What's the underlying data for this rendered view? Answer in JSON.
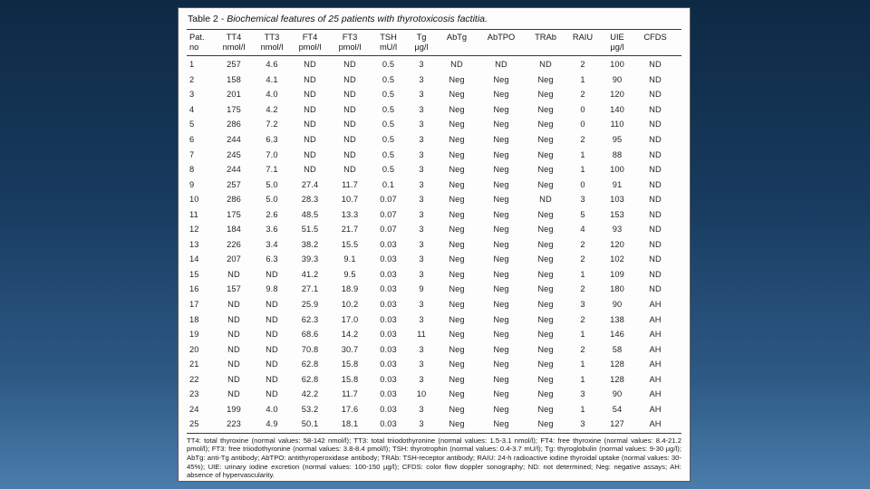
{
  "table": {
    "title_prefix": "Table 2",
    "title_rest": " - Biochemical features of 25 patients with thyrotoxicosis factitia.",
    "columns": [
      {
        "label": "Pat.",
        "unit": "no"
      },
      {
        "label": "TT4",
        "unit": "nmol/l"
      },
      {
        "label": "TT3",
        "unit": "nmol/l"
      },
      {
        "label": "FT4",
        "unit": "pmol/l"
      },
      {
        "label": "FT3",
        "unit": "pmol/l"
      },
      {
        "label": "TSH",
        "unit": "mU/l"
      },
      {
        "label": "Tg",
        "unit": "µg/l"
      },
      {
        "label": "AbTg",
        "unit": ""
      },
      {
        "label": "AbTPO",
        "unit": ""
      },
      {
        "label": "TRAb",
        "unit": ""
      },
      {
        "label": "RAIU",
        "unit": ""
      },
      {
        "label": "UIE",
        "unit": "µg/l"
      },
      {
        "label": "CFDS",
        "unit": ""
      }
    ],
    "rows": [
      [
        "1",
        "257",
        "4.6",
        "ND",
        "ND",
        "0.5",
        "3",
        "ND",
        "ND",
        "ND",
        "2",
        "100",
        "ND"
      ],
      [
        "2",
        "158",
        "4.1",
        "ND",
        "ND",
        "0.5",
        "3",
        "Neg",
        "Neg",
        "Neg",
        "1",
        "90",
        "ND"
      ],
      [
        "3",
        "201",
        "4.0",
        "ND",
        "ND",
        "0.5",
        "3",
        "Neg",
        "Neg",
        "Neg",
        "2",
        "120",
        "ND"
      ],
      [
        "4",
        "175",
        "4.2",
        "ND",
        "ND",
        "0.5",
        "3",
        "Neg",
        "Neg",
        "Neg",
        "0",
        "140",
        "ND"
      ],
      [
        "5",
        "286",
        "7.2",
        "ND",
        "ND",
        "0.5",
        "3",
        "Neg",
        "Neg",
        "Neg",
        "0",
        "110",
        "ND"
      ],
      [
        "6",
        "244",
        "6.3",
        "ND",
        "ND",
        "0.5",
        "3",
        "Neg",
        "Neg",
        "Neg",
        "2",
        "95",
        "ND"
      ],
      [
        "7",
        "245",
        "7.0",
        "ND",
        "ND",
        "0.5",
        "3",
        "Neg",
        "Neg",
        "Neg",
        "1",
        "88",
        "ND"
      ],
      [
        "8",
        "244",
        "7.1",
        "ND",
        "ND",
        "0.5",
        "3",
        "Neg",
        "Neg",
        "Neg",
        "1",
        "100",
        "ND"
      ],
      [
        "9",
        "257",
        "5.0",
        "27.4",
        "11.7",
        "0.1",
        "3",
        "Neg",
        "Neg",
        "Neg",
        "0",
        "91",
        "ND"
      ],
      [
        "10",
        "286",
        "5.0",
        "28.3",
        "10.7",
        "0.07",
        "3",
        "Neg",
        "Neg",
        "ND",
        "3",
        "103",
        "ND"
      ],
      [
        "11",
        "175",
        "2.6",
        "48.5",
        "13.3",
        "0.07",
        "3",
        "Neg",
        "Neg",
        "Neg",
        "5",
        "153",
        "ND"
      ],
      [
        "12",
        "184",
        "3.6",
        "51.5",
        "21.7",
        "0.07",
        "3",
        "Neg",
        "Neg",
        "Neg",
        "4",
        "93",
        "ND"
      ],
      [
        "13",
        "226",
        "3.4",
        "38.2",
        "15.5",
        "0.03",
        "3",
        "Neg",
        "Neg",
        "Neg",
        "2",
        "120",
        "ND"
      ],
      [
        "14",
        "207",
        "6.3",
        "39.3",
        "9.1",
        "0.03",
        "3",
        "Neg",
        "Neg",
        "Neg",
        "2",
        "102",
        "ND"
      ],
      [
        "15",
        "ND",
        "ND",
        "41.2",
        "9.5",
        "0.03",
        "3",
        "Neg",
        "Neg",
        "Neg",
        "1",
        "109",
        "ND"
      ],
      [
        "16",
        "157",
        "9.8",
        "27.1",
        "18.9",
        "0.03",
        "9",
        "Neg",
        "Neg",
        "Neg",
        "2",
        "180",
        "ND"
      ],
      [
        "17",
        "ND",
        "ND",
        "25.9",
        "10.2",
        "0.03",
        "3",
        "Neg",
        "Neg",
        "Neg",
        "3",
        "90",
        "AH"
      ],
      [
        "18",
        "ND",
        "ND",
        "62.3",
        "17.0",
        "0.03",
        "3",
        "Neg",
        "Neg",
        "Neg",
        "2",
        "138",
        "AH"
      ],
      [
        "19",
        "ND",
        "ND",
        "68.6",
        "14.2",
        "0.03",
        "11",
        "Neg",
        "Neg",
        "Neg",
        "1",
        "146",
        "AH"
      ],
      [
        "20",
        "ND",
        "ND",
        "70.8",
        "30.7",
        "0.03",
        "3",
        "Neg",
        "Neg",
        "Neg",
        "2",
        "58",
        "AH"
      ],
      [
        "21",
        "ND",
        "ND",
        "62.8",
        "15.8",
        "0.03",
        "3",
        "Neg",
        "Neg",
        "Neg",
        "1",
        "128",
        "AH"
      ],
      [
        "22",
        "ND",
        "ND",
        "62.8",
        "15.8",
        "0.03",
        "3",
        "Neg",
        "Neg",
        "Neg",
        "1",
        "128",
        "AH"
      ],
      [
        "23",
        "ND",
        "ND",
        "42.2",
        "11.7",
        "0.03",
        "10",
        "Neg",
        "Neg",
        "Neg",
        "3",
        "90",
        "AH"
      ],
      [
        "24",
        "199",
        "4.0",
        "53.2",
        "17.6",
        "0.03",
        "3",
        "Neg",
        "Neg",
        "Neg",
        "1",
        "54",
        "AH"
      ],
      [
        "25",
        "223",
        "4.9",
        "50.1",
        "18.1",
        "0.03",
        "3",
        "Neg",
        "Neg",
        "Neg",
        "3",
        "127",
        "AH"
      ]
    ],
    "footnote": "TT4: total thyroxine (normal values: 58-142 nmol/l); TT3: total triiodothyronine (normal values: 1.5-3.1 nmol/l); FT4: free thyroxine (normal values: 8.4-21.2 pmol/l); FT3: free triiodothyronine (normal values: 3.8-8.4 pmol/l); TSH: thyrotrophin (normal values: 0.4-3.7 mU/l); Tg: thyroglobulin (normal values: 9-30 µg/l); AbTg: anti-Tg antibody; AbTPO: antithyroperoxidase antibody; TRAb: TSH-receptor antibody; RAIU: 24-h radioactive iodine thyroidal uptake (normal values: 30-45%); UIE: urinary iodine excretion (normal values: 100-150 µg/l); CFDS: color flow doppler sonography; ND: not determined; Neg: negative assays; AH: absence of hypervascularity."
  },
  "colors": {
    "slide_gradient_top": "#0e2944",
    "slide_gradient_bottom": "#4a7dab",
    "card_background": "#fdfdfd",
    "text": "#1f1f1f"
  },
  "chart_data": {
    "type": "table",
    "title": "Table 2 - Biochemical features of 25 patients with thyrotoxicosis factitia."
  }
}
